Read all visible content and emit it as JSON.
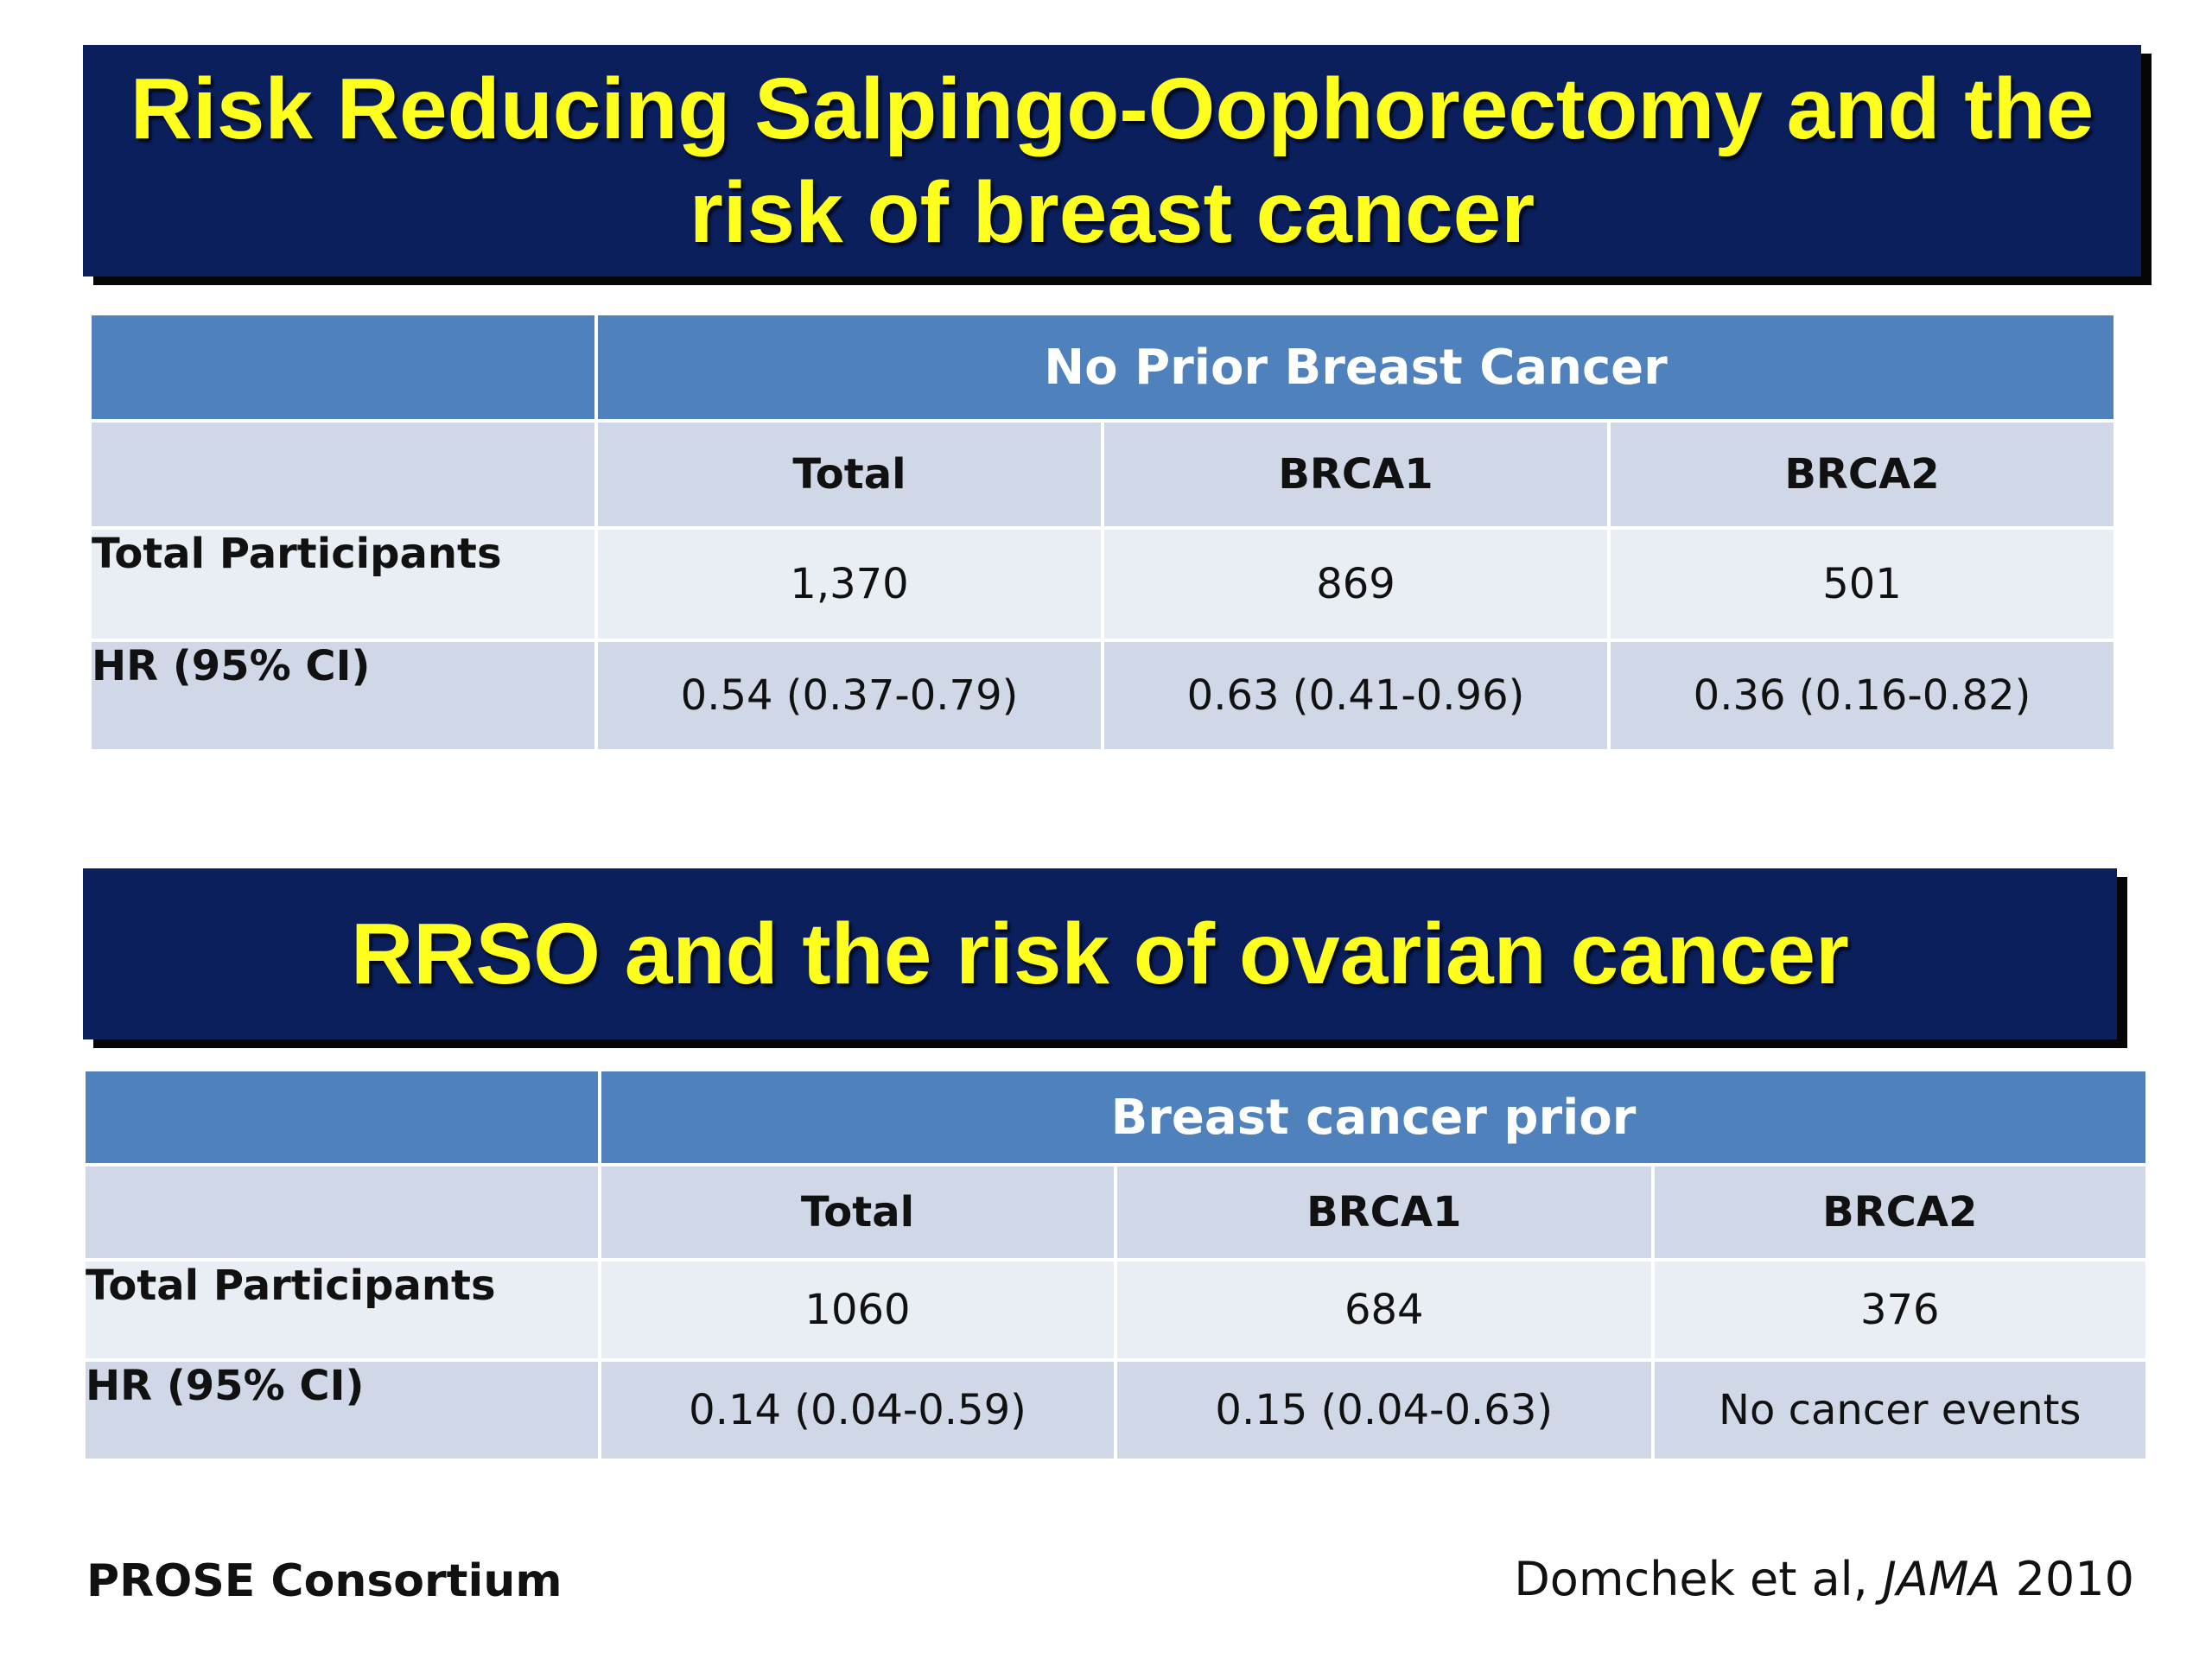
{
  "slide": {
    "title1_line1": "Risk Reducing Salpingo-Oophorectomy and the",
    "title1_line2": "risk of breast cancer",
    "title2": "RRSO and the risk of ovarian cancer"
  },
  "table1": {
    "group_header": "No Prior Breast Cancer",
    "columns": [
      "Total",
      "BRCA1",
      "BRCA2"
    ],
    "rows": [
      {
        "label": "Total Participants",
        "values": [
          "1,370",
          "869",
          "501"
        ]
      },
      {
        "label": "HR (95% CI)",
        "values": [
          "0.54 (0.37-0.79)",
          "0.63 (0.41-0.96)",
          "0.36 (0.16-0.82)"
        ]
      }
    ]
  },
  "table2": {
    "group_header": "Breast cancer prior",
    "columns": [
      "Total",
      "BRCA1",
      "BRCA2"
    ],
    "rows": [
      {
        "label": "Total Participants",
        "values": [
          "1060",
          "684",
          "376"
        ]
      },
      {
        "label": "HR (95% CI)",
        "values": [
          "0.14 (0.04-0.59)",
          "0.15 (0.04-0.63)",
          "No cancer events"
        ]
      }
    ]
  },
  "footer": {
    "left": "PROSE Consortium",
    "citation_authors": "Domchek et al, ",
    "citation_journal": "JAMA",
    "citation_year": " 2010"
  },
  "colors": {
    "banner_bg": "#0a1f5c",
    "banner_text": "#ffff1e",
    "header_blue": "#4f81bd",
    "row_dark": "#d0d8e8",
    "row_light": "#e9edf4"
  }
}
